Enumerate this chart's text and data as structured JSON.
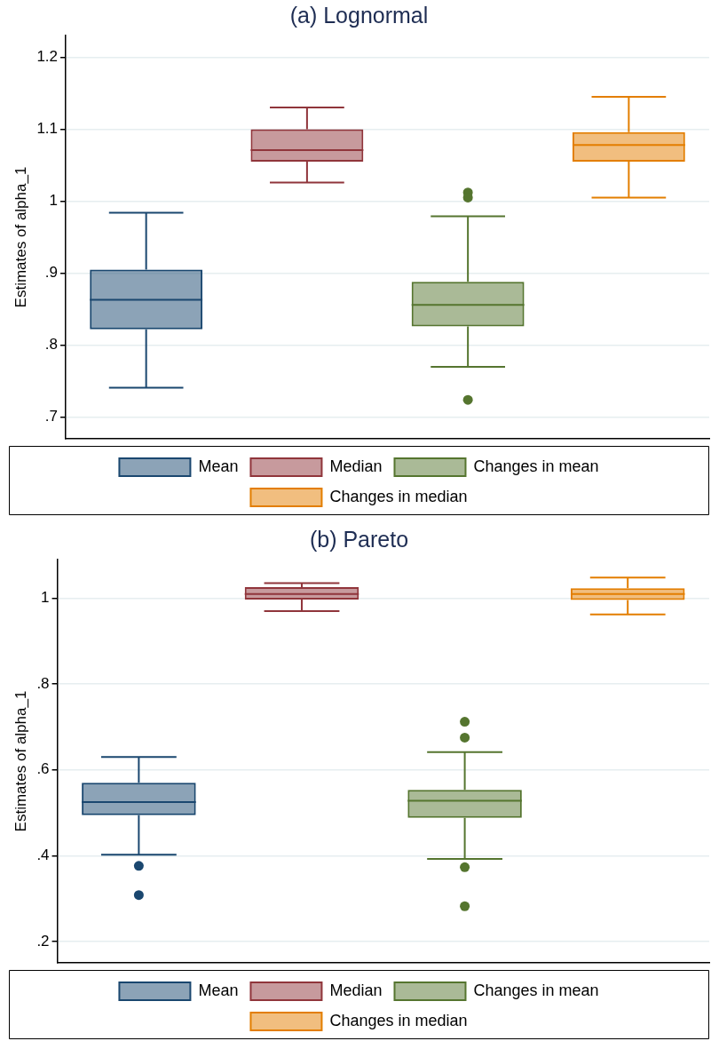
{
  "chart_data": [
    {
      "type": "box",
      "title": "(a) Lognormal",
      "ylabel": "Estimates of alpha_1",
      "categories": [
        null
      ],
      "ylim": [
        0.67,
        1.23
      ],
      "yticks": [
        {
          "value": 0.7,
          "label": ".7"
        },
        {
          "value": 0.8,
          "label": ".8"
        },
        {
          "value": 0.9,
          "label": ".9"
        },
        1,
        1.1,
        1.2
      ],
      "grid": "y",
      "legend": "bottom",
      "tick_labels": "y",
      "series": [
        {
          "name": "Mean",
          "color": "#1a476f",
          "boxes": [
            {
              "low": 0.741,
              "q1": 0.822,
              "median": 0.863,
              "q3": 0.905,
              "high": 0.984
            }
          ]
        },
        {
          "name": "Median",
          "color": "#90353b",
          "boxes": [
            {
              "low": 1.026,
              "q1": 1.055,
              "median": 1.071,
              "q3": 1.1,
              "high": 1.13
            }
          ]
        },
        {
          "name": "Changes in mean",
          "color": "#55752f",
          "boxes": [
            {
              "low": 0.77,
              "q1": 0.826,
              "median": 0.856,
              "q3": 0.888,
              "high": 0.979,
              "outliers": [
                1.012,
                1.005,
                0.724
              ]
            }
          ]
        },
        {
          "name": "Changes in median",
          "color": "#e37e00",
          "boxes": [
            {
              "low": 1.005,
              "q1": 1.055,
              "median": 1.078,
              "q3": 1.096,
              "high": 1.145
            }
          ]
        }
      ]
    },
    {
      "type": "box",
      "title": "(b) Pareto",
      "ylabel": "Estimates of alpha_1",
      "categories": [
        null
      ],
      "ylim": [
        0.15,
        1.09
      ],
      "yticks": [
        {
          "value": 0.2,
          "label": ".2"
        },
        {
          "value": 0.4,
          "label": ".4"
        },
        {
          "value": 0.6,
          "label": ".6"
        },
        {
          "value": 0.8,
          "label": ".8"
        },
        1
      ],
      "grid": "y",
      "legend": "bottom",
      "tick_labels": "y",
      "series": [
        {
          "name": "Mean",
          "color": "#1a476f",
          "boxes": [
            {
              "low": 0.402,
              "q1": 0.494,
              "median": 0.525,
              "q3": 0.57,
              "high": 0.63,
              "outliers": [
                0.376,
                0.308
              ]
            }
          ]
        },
        {
          "name": "Median",
          "color": "#90353b",
          "boxes": [
            {
              "low": 0.97,
              "q1": 0.997,
              "median": 1.01,
              "q3": 1.026,
              "high": 1.035
            }
          ]
        },
        {
          "name": "Changes in mean",
          "color": "#55752f",
          "boxes": [
            {
              "low": 0.392,
              "q1": 0.488,
              "median": 0.528,
              "q3": 0.553,
              "high": 0.641,
              "outliers": [
                0.712,
                0.675,
                0.373,
                0.282
              ]
            }
          ]
        },
        {
          "name": "Changes in median",
          "color": "#e37e00",
          "boxes": [
            {
              "low": 0.962,
              "q1": 0.996,
              "median": 1.01,
              "q3": 1.023,
              "high": 1.048
            }
          ]
        }
      ]
    }
  ]
}
